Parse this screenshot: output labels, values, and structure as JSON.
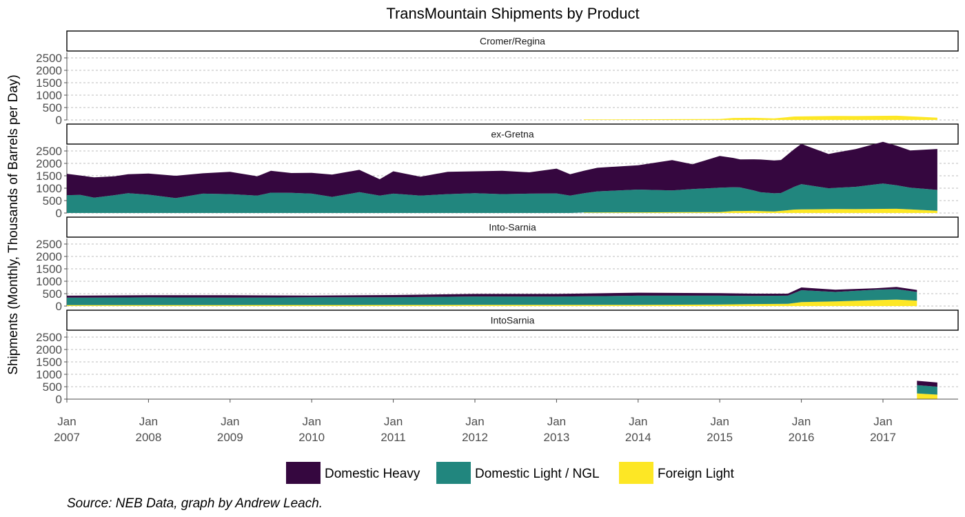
{
  "chart_data": {
    "type": "area",
    "stacked": true,
    "faceted": true,
    "title": "TransMountain Shipments by Product",
    "ylabel": "Shipments (Monthly, Thousands of Barrels per Day)",
    "xlabel": "",
    "caption": "Source: NEB Data, graph by Andrew Leach.",
    "ylim": [
      0,
      2500
    ],
    "y_ticks": [
      0,
      500,
      1000,
      1500,
      2000,
      2500
    ],
    "xlim": [
      "2007-01",
      "2017-11"
    ],
    "x_ticks": [
      {
        "date": "2007-01",
        "label1": "Jan",
        "label2": "2007"
      },
      {
        "date": "2008-01",
        "label1": "Jan",
        "label2": "2008"
      },
      {
        "date": "2009-01",
        "label1": "Jan",
        "label2": "2009"
      },
      {
        "date": "2010-01",
        "label1": "Jan",
        "label2": "2010"
      },
      {
        "date": "2011-01",
        "label1": "Jan",
        "label2": "2011"
      },
      {
        "date": "2012-01",
        "label1": "Jan",
        "label2": "2012"
      },
      {
        "date": "2013-01",
        "label1": "Jan",
        "label2": "2013"
      },
      {
        "date": "2014-01",
        "label1": "Jan",
        "label2": "2014"
      },
      {
        "date": "2015-01",
        "label1": "Jan",
        "label2": "2015"
      },
      {
        "date": "2016-01",
        "label1": "Jan",
        "label2": "2016"
      },
      {
        "date": "2017-01",
        "label1": "Jan",
        "label2": "2017"
      }
    ],
    "grid": "horizontal dashed",
    "legend": "bottom",
    "series_meta": [
      {
        "key": "heavy",
        "name": "Domestic Heavy",
        "color": "#35073f"
      },
      {
        "key": "light",
        "name": "Domestic Light / NGL",
        "color": "#21867e"
      },
      {
        "key": "foreign",
        "name": "Foreign Light",
        "color": "#fde725"
      }
    ],
    "panels": [
      {
        "name": "Cromer/Regina",
        "series": {
          "foreign": [
            [
              "2013-05",
              20
            ],
            [
              "2014-01",
              25
            ],
            [
              "2014-06",
              30
            ],
            [
              "2015-01",
              40
            ],
            [
              "2015-03",
              80
            ],
            [
              "2015-06",
              85
            ],
            [
              "2015-09",
              60
            ],
            [
              "2015-12",
              140
            ],
            [
              "2016-03",
              150
            ],
            [
              "2016-06",
              160
            ],
            [
              "2016-09",
              155
            ],
            [
              "2016-12",
              165
            ],
            [
              "2017-03",
              170
            ],
            [
              "2017-06",
              130
            ],
            [
              "2017-09",
              90
            ]
          ]
        }
      },
      {
        "name": "ex-Gretna",
        "series": {
          "light": [
            [
              "2007-01",
              720
            ],
            [
              "2007-03",
              730
            ],
            [
              "2007-05",
              620
            ],
            [
              "2007-08",
              720
            ],
            [
              "2007-10",
              800
            ],
            [
              "2008-01",
              740
            ],
            [
              "2008-05",
              600
            ],
            [
              "2008-09",
              780
            ],
            [
              "2009-01",
              760
            ],
            [
              "2009-05",
              700
            ],
            [
              "2009-07",
              820
            ],
            [
              "2009-10",
              810
            ],
            [
              "2010-01",
              780
            ],
            [
              "2010-04",
              650
            ],
            [
              "2010-08",
              840
            ],
            [
              "2010-11",
              700
            ],
            [
              "2011-01",
              780
            ],
            [
              "2011-05",
              700
            ],
            [
              "2011-09",
              760
            ],
            [
              "2012-01",
              800
            ],
            [
              "2012-05",
              760
            ],
            [
              "2012-09",
              780
            ],
            [
              "2013-01",
              790
            ],
            [
              "2013-03",
              700
            ],
            [
              "2013-07",
              850
            ],
            [
              "2014-01",
              920
            ],
            [
              "2014-06",
              880
            ],
            [
              "2014-09",
              930
            ],
            [
              "2015-01",
              980
            ],
            [
              "2015-04",
              950
            ],
            [
              "2015-07",
              760
            ],
            [
              "2015-10",
              720
            ],
            [
              "2016-01",
              1020
            ],
            [
              "2016-05",
              840
            ],
            [
              "2016-09",
              900
            ],
            [
              "2017-01",
              1020
            ],
            [
              "2017-05",
              880
            ],
            [
              "2017-09",
              840
            ]
          ],
          "heavy": [
            [
              "2007-01",
              860
            ],
            [
              "2007-03",
              780
            ],
            [
              "2007-05",
              820
            ],
            [
              "2007-08",
              760
            ],
            [
              "2007-10",
              760
            ],
            [
              "2008-01",
              850
            ],
            [
              "2008-05",
              900
            ],
            [
              "2008-09",
              820
            ],
            [
              "2009-01",
              900
            ],
            [
              "2009-05",
              780
            ],
            [
              "2009-07",
              880
            ],
            [
              "2009-10",
              800
            ],
            [
              "2010-01",
              840
            ],
            [
              "2010-04",
              900
            ],
            [
              "2010-08",
              900
            ],
            [
              "2010-11",
              660
            ],
            [
              "2011-01",
              900
            ],
            [
              "2011-05",
              760
            ],
            [
              "2011-09",
              900
            ],
            [
              "2012-01",
              880
            ],
            [
              "2012-05",
              940
            ],
            [
              "2012-09",
              860
            ],
            [
              "2013-01",
              1000
            ],
            [
              "2013-03",
              860
            ],
            [
              "2013-07",
              950
            ],
            [
              "2014-01",
              980
            ],
            [
              "2014-06",
              1220
            ],
            [
              "2014-09",
              1000
            ],
            [
              "2015-01",
              1280
            ],
            [
              "2015-04",
              1130
            ],
            [
              "2015-07",
              1320
            ],
            [
              "2015-10",
              1330
            ],
            [
              "2016-01",
              1620
            ],
            [
              "2016-05",
              1380
            ],
            [
              "2016-09",
              1520
            ],
            [
              "2017-01",
              1680
            ],
            [
              "2017-05",
              1500
            ],
            [
              "2017-09",
              1650
            ]
          ],
          "foreign": [
            [
              "2013-05",
              20
            ],
            [
              "2014-01",
              25
            ],
            [
              "2014-06",
              30
            ],
            [
              "2015-01",
              40
            ],
            [
              "2015-03",
              80
            ],
            [
              "2015-06",
              85
            ],
            [
              "2015-09",
              60
            ],
            [
              "2015-12",
              140
            ],
            [
              "2016-03",
              150
            ],
            [
              "2016-06",
              160
            ],
            [
              "2016-09",
              155
            ],
            [
              "2016-12",
              165
            ],
            [
              "2017-03",
              170
            ],
            [
              "2017-06",
              130
            ],
            [
              "2017-09",
              90
            ]
          ]
        }
      },
      {
        "name": "Into-Sarnia",
        "series": {
          "foreign": [
            [
              "2007-01",
              40
            ],
            [
              "2009-01",
              40
            ],
            [
              "2011-01",
              45
            ],
            [
              "2013-01",
              50
            ],
            [
              "2014-01",
              50
            ],
            [
              "2015-01",
              60
            ],
            [
              "2015-06",
              80
            ],
            [
              "2015-11",
              90
            ],
            [
              "2016-01",
              160
            ],
            [
              "2016-06",
              190
            ],
            [
              "2016-12",
              240
            ],
            [
              "2017-03",
              260
            ],
            [
              "2017-06",
              220
            ]
          ],
          "light": [
            [
              "2007-01",
              300
            ],
            [
              "2008-01",
              310
            ],
            [
              "2009-01",
              300
            ],
            [
              "2010-01",
              310
            ],
            [
              "2011-01",
              310
            ],
            [
              "2012-01",
              340
            ],
            [
              "2013-01",
              330
            ],
            [
              "2014-01",
              370
            ],
            [
              "2015-01",
              360
            ],
            [
              "2015-06",
              330
            ],
            [
              "2015-11",
              330
            ],
            [
              "2016-01",
              480
            ],
            [
              "2016-06",
              380
            ],
            [
              "2016-12",
              420
            ],
            [
              "2017-03",
              420
            ],
            [
              "2017-06",
              350
            ]
          ],
          "heavy": [
            [
              "2007-01",
              80
            ],
            [
              "2008-01",
              90
            ],
            [
              "2009-01",
              100
            ],
            [
              "2010-01",
              70
            ],
            [
              "2011-01",
              90
            ],
            [
              "2012-01",
              100
            ],
            [
              "2013-01",
              110
            ],
            [
              "2014-01",
              120
            ],
            [
              "2015-01",
              100
            ],
            [
              "2015-06",
              90
            ],
            [
              "2015-11",
              80
            ],
            [
              "2016-01",
              110
            ],
            [
              "2016-06",
              90
            ],
            [
              "2016-12",
              60
            ],
            [
              "2017-03",
              90
            ],
            [
              "2017-06",
              80
            ]
          ]
        }
      },
      {
        "name": "IntoSarnia",
        "series": {
          "foreign": [
            [
              "2017-06",
              230
            ],
            [
              "2017-09",
              180
            ]
          ],
          "light": [
            [
              "2017-06",
              330
            ],
            [
              "2017-09",
              320
            ]
          ],
          "heavy": [
            [
              "2017-06",
              180
            ],
            [
              "2017-09",
              170
            ]
          ]
        }
      }
    ]
  }
}
